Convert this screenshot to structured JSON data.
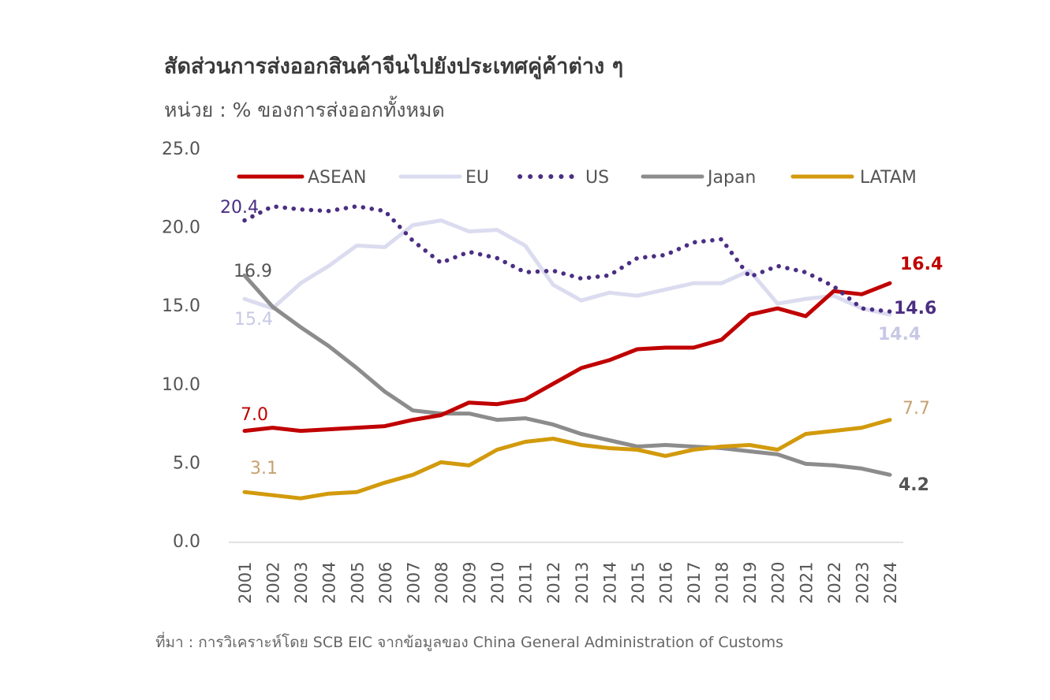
{
  "title": "สัดส่วนการส่งออกสินค้าจีนไปยังประเทศคู่ค้าต่าง ๆ",
  "subtitle": "หน่วย : % ของการส่งออกทั้งหมด",
  "source": "ที่มา : การวิเคราะห์โดย SCB EIC จากข้อมูลของ China General Administration of Customs",
  "chart_data": {
    "type": "line",
    "title": "สัดส่วนการส่งออกสินค้าจีนไปยังประเทศคู่ค้าต่าง ๆ",
    "ylabel": "หน่วย : % ของการส่งออกทั้งหมด",
    "xlabel": "",
    "ylim": [
      0,
      25
    ],
    "yticks": [
      "0.0",
      "5.0",
      "10.0",
      "15.0",
      "20.0",
      "25.0"
    ],
    "grid": false,
    "legend_position": "top",
    "categories": [
      "2001",
      "2002",
      "2003",
      "2004",
      "2005",
      "2006",
      "2007",
      "2008",
      "2009",
      "2010",
      "2011",
      "2012",
      "2013",
      "2014",
      "2015",
      "2016",
      "2017",
      "2018",
      "2019",
      "2020",
      "2021",
      "2022",
      "2023",
      "2024"
    ],
    "series": [
      {
        "name": "ASEAN",
        "color": "#c00000",
        "style": "solid",
        "values": [
          7.0,
          7.2,
          7.0,
          7.1,
          7.2,
          7.3,
          7.7,
          8.0,
          8.8,
          8.7,
          9.0,
          10.0,
          11.0,
          11.5,
          12.2,
          12.3,
          12.3,
          12.8,
          14.4,
          14.8,
          14.3,
          15.9,
          15.7,
          16.4
        ],
        "start_label": "7.0",
        "end_label": "16.4"
      },
      {
        "name": "EU",
        "color": "#dcdcf0",
        "style": "solid",
        "values": [
          15.4,
          14.8,
          16.4,
          17.5,
          18.8,
          18.7,
          20.1,
          20.4,
          19.7,
          19.8,
          18.8,
          16.3,
          15.3,
          15.8,
          15.6,
          16.0,
          16.4,
          16.4,
          17.2,
          15.1,
          15.4,
          15.6,
          14.8,
          14.4
        ],
        "start_label": "15.4",
        "end_label": "14.4"
      },
      {
        "name": "US",
        "color": "#4b2e83",
        "style": "dotted",
        "values": [
          20.4,
          21.3,
          21.1,
          21.0,
          21.3,
          21.0,
          19.1,
          17.7,
          18.4,
          18.0,
          17.1,
          17.2,
          16.7,
          16.9,
          18.0,
          18.2,
          19.0,
          19.2,
          16.8,
          17.5,
          17.1,
          16.2,
          14.8,
          14.6
        ],
        "start_label": "20.4",
        "end_label": "14.6"
      },
      {
        "name": "Japan",
        "color": "#8c8c8c",
        "style": "solid",
        "values": [
          16.9,
          14.9,
          13.6,
          12.4,
          11.0,
          9.5,
          8.3,
          8.1,
          8.1,
          7.7,
          7.8,
          7.4,
          6.8,
          6.4,
          6.0,
          6.1,
          6.0,
          5.9,
          5.7,
          5.5,
          4.9,
          4.8,
          4.6,
          4.2
        ],
        "start_label": "16.9",
        "end_label": "4.2"
      },
      {
        "name": "LATAM",
        "color": "#d29a0c",
        "style": "solid",
        "values": [
          3.1,
          2.9,
          2.7,
          3.0,
          3.1,
          3.7,
          4.2,
          5.0,
          4.8,
          5.8,
          6.3,
          6.5,
          6.1,
          5.9,
          5.8,
          5.4,
          5.8,
          6.0,
          6.1,
          5.8,
          6.8,
          7.0,
          7.2,
          7.7
        ],
        "start_label": "3.1",
        "end_label": "7.7"
      }
    ]
  }
}
